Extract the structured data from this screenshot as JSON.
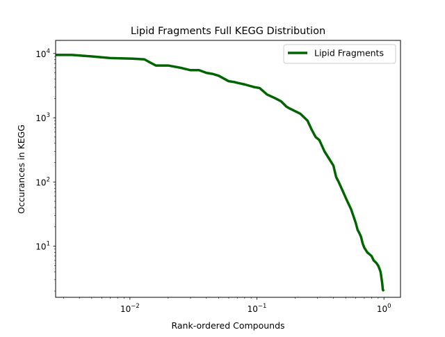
{
  "chart_data": {
    "type": "line",
    "title": "Lipid Fragments Full KEGG Distribution",
    "xlabel": "Rank-ordered Compounds",
    "ylabel": "Occurances in KEGG",
    "xscale": "log",
    "yscale": "log",
    "xlim": [
      0.0026,
      1.35
    ],
    "ylim": [
      1.6,
      16000
    ],
    "xticks": [
      {
        "value": 0.01,
        "base": "10",
        "exp": "−2"
      },
      {
        "value": 0.1,
        "base": "10",
        "exp": "−1"
      },
      {
        "value": 1,
        "base": "10",
        "exp": "0"
      }
    ],
    "yticks": [
      {
        "value": 10,
        "base": "10",
        "exp": "1"
      },
      {
        "value": 100,
        "base": "10",
        "exp": "2"
      },
      {
        "value": 1000,
        "base": "10",
        "exp": "3"
      },
      {
        "value": 10000,
        "base": "10",
        "exp": "4"
      }
    ],
    "legend": {
      "position": "upper right"
    },
    "colors": {
      "series": "#006400",
      "axes": "#000000"
    },
    "series": [
      {
        "name": "Lipid Fragments",
        "x": [
          0.0026,
          0.0035,
          0.005,
          0.007,
          0.0105,
          0.013,
          0.0145,
          0.016,
          0.02,
          0.025,
          0.03,
          0.035,
          0.04,
          0.045,
          0.05,
          0.06,
          0.066,
          0.07,
          0.08,
          0.095,
          0.105,
          0.12,
          0.14,
          0.155,
          0.17,
          0.18,
          0.22,
          0.25,
          0.27,
          0.29,
          0.31,
          0.34,
          0.37,
          0.4,
          0.42,
          0.44,
          0.47,
          0.51,
          0.55,
          0.58,
          0.6,
          0.62,
          0.64,
          0.66,
          0.68,
          0.7,
          0.74,
          0.77,
          0.8,
          0.83,
          0.87,
          0.9,
          0.92,
          0.94,
          0.95,
          0.96,
          0.97,
          0.98,
          1.0
        ],
        "values": [
          9500,
          9500,
          9000,
          8500,
          8300,
          8100,
          7200,
          6500,
          6500,
          6000,
          5500,
          5500,
          5000,
          4800,
          4500,
          3700,
          3600,
          3500,
          3300,
          3000,
          2900,
          2300,
          2000,
          1800,
          1500,
          1400,
          1150,
          900,
          650,
          500,
          450,
          300,
          230,
          180,
          120,
          100,
          75,
          52,
          38,
          28,
          23,
          18,
          16,
          14,
          11,
          9.5,
          8,
          7.5,
          7,
          6,
          5.5,
          5,
          4.5,
          4,
          3.5,
          3,
          2.6,
          2.1,
          2.0
        ]
      }
    ]
  }
}
